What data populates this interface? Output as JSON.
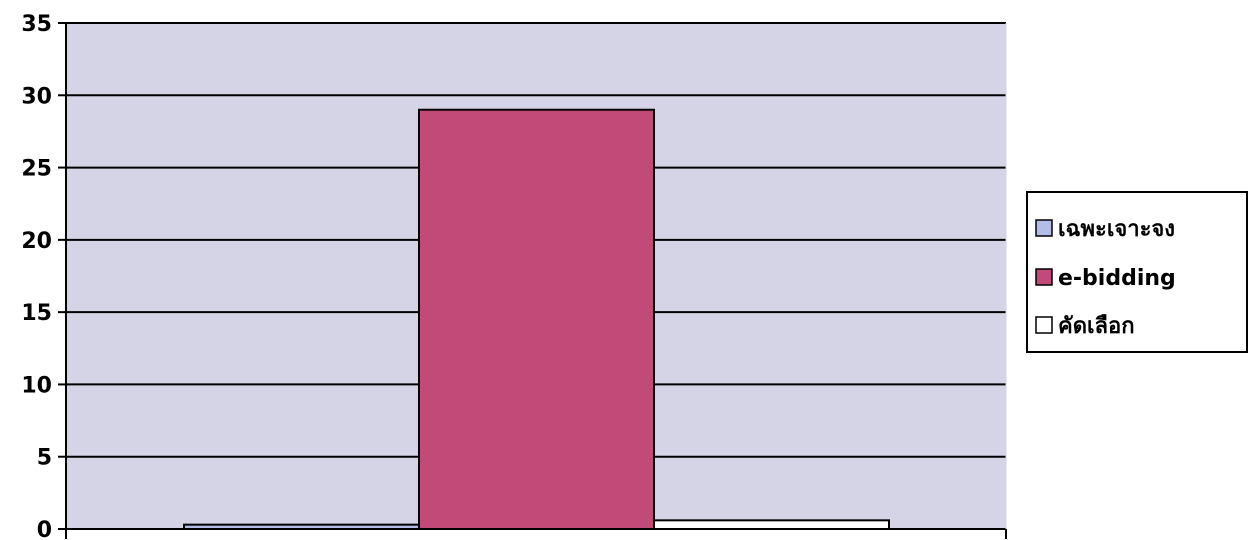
{
  "chart_data": {
    "type": "bar",
    "categories": [
      ""
    ],
    "series": [
      {
        "name": "เฉพะเจาะจง",
        "values": [
          0.3
        ]
      },
      {
        "name": "e-bidding",
        "values": [
          29
        ]
      },
      {
        "name": "คัดเลือก",
        "values": [
          0.6
        ]
      }
    ],
    "title": "",
    "xlabel": "",
    "ylabel": "",
    "ylim": [
      0,
      35
    ],
    "yticks": [
      "0",
      "5",
      "10",
      "15",
      "20",
      "25",
      "30",
      "35"
    ],
    "grid": true,
    "legend": "right",
    "colors": {
      "plot_background": "#d4d4e6",
      "series": [
        "#b4bde8",
        "#c14a78",
        "#ffffff"
      ],
      "bar_edge": "#000000",
      "grid": "#000000"
    }
  }
}
